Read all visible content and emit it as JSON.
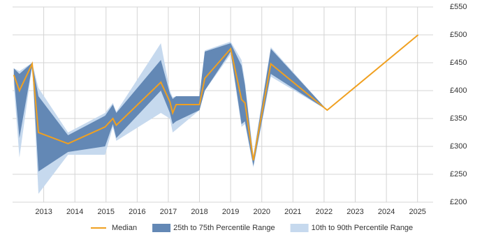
{
  "chart_data": {
    "type": "band-line",
    "x": [
      2012.04,
      2012.22,
      2012.63,
      2012.83,
      2013.78,
      2014.97,
      2015.22,
      2015.33,
      2016.76,
      2017.05,
      2017.14,
      2017.25,
      2018.0,
      2018.17,
      2019.0,
      2019.35,
      2019.46,
      2019.73,
      2020.29,
      2022.1,
      2025.02
    ],
    "series": [
      {
        "name": "10th to 90th Percentile Range",
        "color": "#c6d9ee",
        "low": [
          410,
          280,
          445,
          215,
          285,
          285,
          335,
          310,
          360,
          350,
          325,
          330,
          365,
          400,
          465,
          335,
          340,
          262,
          425,
          365,
          500
        ],
        "high": [
          440,
          435,
          450,
          405,
          325,
          360,
          378,
          362,
          485,
          400,
          388,
          390,
          390,
          472,
          488,
          455,
          415,
          285,
          478,
          365,
          500
        ]
      },
      {
        "name": "25th to 75th Percentile Range",
        "color": "#6388b5",
        "low": [
          425,
          315,
          445,
          255,
          290,
          300,
          340,
          315,
          400,
          360,
          340,
          345,
          365,
          400,
          470,
          340,
          345,
          265,
          430,
          365,
          500
        ],
        "high": [
          440,
          430,
          450,
          390,
          320,
          355,
          375,
          360,
          455,
          395,
          385,
          390,
          390,
          470,
          485,
          445,
          410,
          280,
          475,
          365,
          500
        ]
      },
      {
        "name": "Median",
        "color": "#f0a020",
        "values": [
          428,
          400,
          448,
          325,
          305,
          335,
          350,
          338,
          415,
          380,
          360,
          375,
          375,
          422,
          475,
          384,
          378,
          275,
          448,
          365,
          500
        ]
      }
    ],
    "xlim": [
      2012,
      2025.5
    ],
    "xticks": [
      2013,
      2014,
      2015,
      2016,
      2017,
      2018,
      2019,
      2020,
      2021,
      2022,
      2023,
      2024,
      2025
    ],
    "ylim": [
      200,
      550
    ],
    "yticks": [
      {
        "value": 200,
        "label": "£200"
      },
      {
        "value": 250,
        "label": "£250"
      },
      {
        "value": 300,
        "label": "£300"
      },
      {
        "value": 350,
        "label": "£350"
      },
      {
        "value": 400,
        "label": "£400"
      },
      {
        "value": 450,
        "label": "£450"
      },
      {
        "value": 500,
        "label": "£500"
      },
      {
        "value": 550,
        "label": "£550"
      }
    ],
    "grid": true
  }
}
